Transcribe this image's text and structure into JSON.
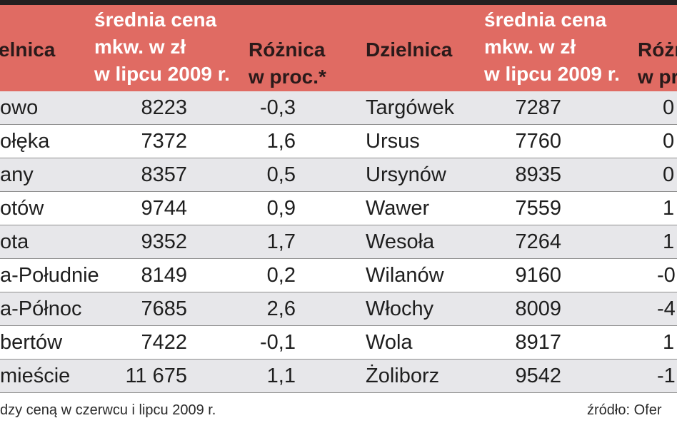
{
  "header": {
    "district_label": "Dzielnica",
    "price_label": [
      "średnia cena",
      "mkw. w zł",
      "w lipcu 2009 r."
    ],
    "diff_label": [
      "Różnica",
      "w proc.*"
    ],
    "district_label_left_visible": "elnica",
    "diff_label_right_visible": [
      "Różn",
      "w pr"
    ]
  },
  "left_rows": [
    {
      "district": "owo",
      "price": "8223",
      "diff": "-0,3"
    },
    {
      "district": "ołęka",
      "price": "7372",
      "diff": "1,6"
    },
    {
      "district": "any",
      "price": "8357",
      "diff": "0,5"
    },
    {
      "district": "otów",
      "price": "9744",
      "diff": "0,9"
    },
    {
      "district": "ota",
      "price": "9352",
      "diff": "1,7"
    },
    {
      "district": "a-Południe",
      "price": "8149",
      "diff": "0,2"
    },
    {
      "district": "a-Północ",
      "price": "7685",
      "diff": "2,6"
    },
    {
      "district": "bertów",
      "price": "7422",
      "diff": "-0,1"
    },
    {
      "district": "mieście",
      "price": "11 675",
      "diff": "1,1"
    }
  ],
  "right_rows": [
    {
      "district": "Targówek",
      "price": "7287",
      "diff": "0"
    },
    {
      "district": "Ursus",
      "price": "7760",
      "diff": "0"
    },
    {
      "district": "Ursynów",
      "price": "8935",
      "diff": "0"
    },
    {
      "district": "Wawer",
      "price": "7559",
      "diff": "1"
    },
    {
      "district": "Wesoła",
      "price": "7264",
      "diff": "1"
    },
    {
      "district": "Wilanów",
      "price": "9160",
      "diff": "-0"
    },
    {
      "district": "Włochy",
      "price": "8009",
      "diff": "-4"
    },
    {
      "district": "Wola",
      "price": "8917",
      "diff": "1"
    },
    {
      "district": "Żoliborz",
      "price": "9542",
      "diff": "-1"
    }
  ],
  "footnote": "dzy ceną w czerwcu i lipcu 2009 r.",
  "source": "źródło: Ofer",
  "colors": {
    "header_bg": "#e06b63",
    "shaded_row": "#e7e7ea",
    "top_bar": "#231f20"
  }
}
